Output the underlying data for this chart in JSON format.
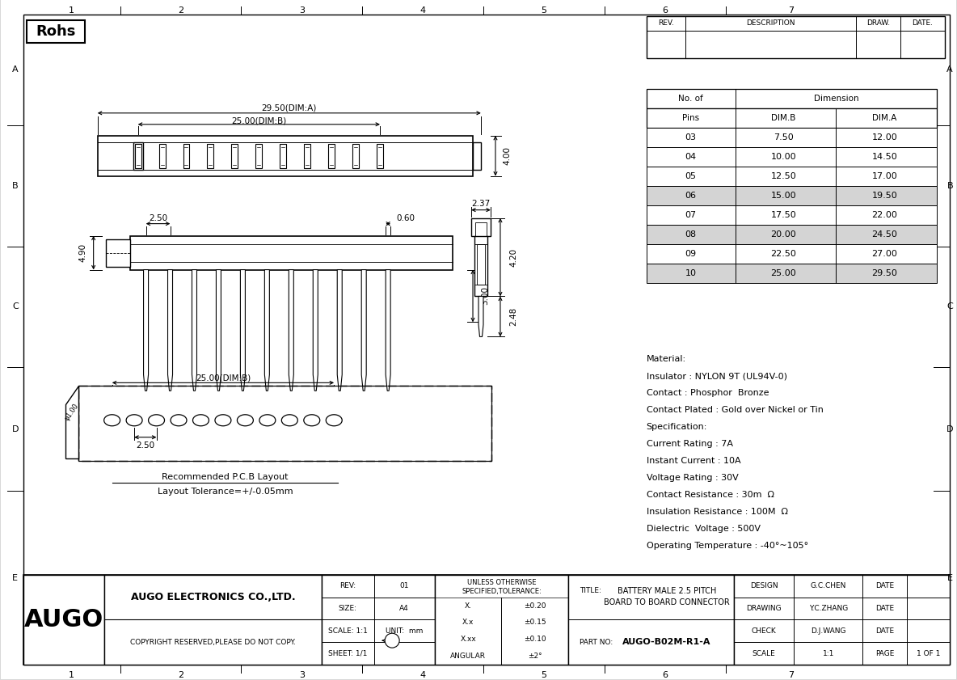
{
  "title": "BATTERY MALE 2.5 PITCH BOARD TO BOARD CONNECTOR",
  "part_no": "AUGO-B02M-R1-A",
  "company": "AUGO ELECTRONICS CO.,LTD.",
  "copyright": "COPYRIGHT RESERVED,PLEASE DO NOT COPY.",
  "rohs": "Rohs",
  "rev_val": "01",
  "size_val": "A4",
  "scale_val": "1:1",
  "unit_val": "mm",
  "sheet_val": "1/1",
  "design_name": "G.C.CHEN",
  "drawing_name": "Y.C.ZHANG",
  "check_name": "D.J.WANG",
  "dim_table": {
    "rows": [
      [
        "03",
        "7.50",
        "12.00"
      ],
      [
        "04",
        "10.00",
        "14.50"
      ],
      [
        "05",
        "12.50",
        "17.00"
      ],
      [
        "06",
        "15.00",
        "19.50"
      ],
      [
        "07",
        "17.50",
        "22.00"
      ],
      [
        "08",
        "20.00",
        "24.50"
      ],
      [
        "09",
        "22.50",
        "27.00"
      ],
      [
        "10",
        "25.00",
        "29.50"
      ]
    ],
    "shaded_rows": [
      3,
      5,
      7
    ]
  },
  "material_text": [
    "Material:",
    "Insulator : NYLON 9T (UL94V-0)",
    "Contact : Phosphor  Bronze",
    "Contact Plated : Gold over Nickel or Tin",
    "Specification:",
    "Current Rating : 7A",
    "Instant Current : 10A",
    "Voltage Rating : 30V",
    "Contact Resistance : 30m  Ω",
    "Insulation Resistance : 100M  Ω",
    "Dielectric  Voltage : 500V",
    "Operating Temperature : -40°~105°"
  ],
  "grid_labels_top": [
    "1",
    "2",
    "3",
    "4",
    "5",
    "6",
    "7"
  ],
  "grid_labels_side": [
    "A",
    "B",
    "C",
    "D",
    "E"
  ],
  "footer_tolerances": [
    [
      "X.",
      "±0.20"
    ],
    [
      "X.x",
      "±0.15"
    ],
    [
      "X.xx",
      "±0.10"
    ],
    [
      "ANGULAR",
      "±2°"
    ]
  ],
  "watermark_color": "#b8cce4",
  "watermark_alpha": 0.18
}
